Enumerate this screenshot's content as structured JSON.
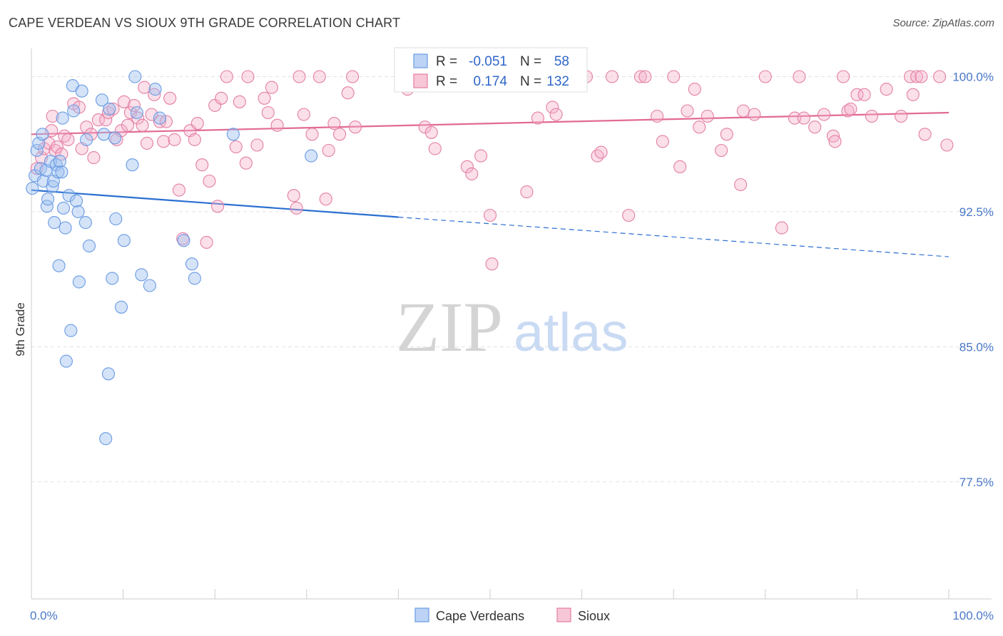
{
  "title": "CAPE VERDEAN VS SIOUX 9TH GRADE CORRELATION CHART",
  "source": "Source: ZipAtlas.com",
  "watermark": {
    "zip": "ZIP",
    "atlas": "atlas"
  },
  "chart_data": {
    "type": "scatter",
    "ylabel": "9th Grade",
    "xlim": [
      0,
      100
    ],
    "ylim": [
      71,
      101.8
    ],
    "y_ticks": [
      77.5,
      85.0,
      92.5,
      100.0
    ],
    "y_tick_labels": [
      "77.5%",
      "85.0%",
      "92.5%",
      "100.0%"
    ],
    "x_tick_labels": [
      "0.0%",
      "100.0%"
    ],
    "legend": {
      "r_label": "R =",
      "n_label": "N =",
      "entries": [
        {
          "name": "Cape Verdeans",
          "r": "-0.051",
          "n": "58",
          "color": "#6a9be3",
          "fill": "#bcd3f5"
        },
        {
          "name": "Sioux",
          "r": "0.174",
          "n": "132",
          "color": "#e37fa3",
          "fill": "#f7c6d7"
        }
      ]
    },
    "series": [
      {
        "name": "Cape Verdeans",
        "color": "#6a9be3",
        "trend": {
          "x0": 0,
          "y0": 93.7,
          "x1": 40,
          "y1": 92.2,
          "x_dash_end": 100,
          "y_dash_end": 90.0
        },
        "points": [
          [
            0.1,
            93.8
          ],
          [
            0.4,
            94.5
          ],
          [
            0.6,
            95.9
          ],
          [
            0.8,
            96.3
          ],
          [
            1.0,
            94.9
          ],
          [
            1.2,
            96.8
          ],
          [
            1.3,
            94.2
          ],
          [
            1.6,
            94.8
          ],
          [
            1.7,
            92.8
          ],
          [
            1.8,
            93.2
          ],
          [
            2.1,
            95.3
          ],
          [
            2.3,
            93.9
          ],
          [
            2.4,
            94.2
          ],
          [
            2.5,
            91.9
          ],
          [
            2.7,
            95.1
          ],
          [
            2.9,
            94.7
          ],
          [
            3.0,
            89.5
          ],
          [
            3.1,
            95.3
          ],
          [
            3.3,
            94.7
          ],
          [
            3.4,
            97.7
          ],
          [
            3.5,
            92.7
          ],
          [
            3.7,
            91.6
          ],
          [
            3.8,
            84.2
          ],
          [
            4.1,
            93.4
          ],
          [
            4.3,
            85.9
          ],
          [
            4.5,
            99.5
          ],
          [
            4.6,
            98.1
          ],
          [
            4.9,
            93.1
          ],
          [
            5.1,
            92.5
          ],
          [
            5.2,
            88.6
          ],
          [
            5.5,
            99.2
          ],
          [
            5.9,
            91.9
          ],
          [
            6.0,
            96.5
          ],
          [
            6.3,
            90.6
          ],
          [
            7.7,
            98.7
          ],
          [
            7.9,
            96.8
          ],
          [
            8.1,
            79.9
          ],
          [
            8.4,
            83.5
          ],
          [
            8.5,
            98.2
          ],
          [
            8.8,
            88.8
          ],
          [
            9.1,
            96.6
          ],
          [
            9.2,
            92.1
          ],
          [
            9.8,
            87.2
          ],
          [
            10.1,
            90.9
          ],
          [
            11.0,
            95.1
          ],
          [
            11.3,
            100.0
          ],
          [
            11.5,
            98.0
          ],
          [
            12.0,
            89.0
          ],
          [
            12.9,
            88.4
          ],
          [
            13.5,
            99.3
          ],
          [
            14.0,
            97.7
          ],
          [
            16.6,
            90.9
          ],
          [
            17.5,
            89.6
          ],
          [
            17.8,
            88.8
          ],
          [
            22.0,
            96.8
          ],
          [
            30.5,
            95.6
          ]
        ]
      },
      {
        "name": "Sioux",
        "color": "#e37fa3",
        "trend": {
          "x0": 0,
          "y0": 96.8,
          "x1": 100,
          "y1": 98.0
        },
        "points": [
          [
            0.6,
            94.9
          ],
          [
            1.1,
            95.5
          ],
          [
            1.4,
            96.0
          ],
          [
            1.9,
            96.3
          ],
          [
            2.2,
            97.0
          ],
          [
            2.3,
            97.8
          ],
          [
            2.6,
            95.9
          ],
          [
            2.8,
            96.1
          ],
          [
            3.3,
            95.7
          ],
          [
            3.6,
            96.7
          ],
          [
            4.0,
            96.5
          ],
          [
            4.6,
            98.5
          ],
          [
            5.2,
            98.3
          ],
          [
            5.5,
            96.0
          ],
          [
            6.0,
            97.2
          ],
          [
            6.5,
            96.8
          ],
          [
            6.8,
            95.5
          ],
          [
            7.3,
            97.6
          ],
          [
            8.1,
            97.6
          ],
          [
            8.4,
            98.0
          ],
          [
            8.9,
            98.2
          ],
          [
            9.3,
            96.5
          ],
          [
            9.8,
            97.0
          ],
          [
            10.1,
            98.6
          ],
          [
            10.5,
            97.3
          ],
          [
            10.8,
            98.0
          ],
          [
            11.2,
            98.4
          ],
          [
            11.6,
            97.7
          ],
          [
            12.1,
            97.3
          ],
          [
            12.3,
            99.4
          ],
          [
            12.6,
            96.3
          ],
          [
            13.1,
            97.9
          ],
          [
            13.4,
            99.0
          ],
          [
            14.0,
            97.5
          ],
          [
            14.4,
            96.4
          ],
          [
            14.7,
            97.5
          ],
          [
            15.1,
            98.8
          ],
          [
            15.6,
            96.5
          ],
          [
            16.1,
            93.7
          ],
          [
            16.5,
            91.0
          ],
          [
            17.3,
            97.0
          ],
          [
            17.8,
            96.5
          ],
          [
            18.1,
            97.4
          ],
          [
            18.6,
            95.1
          ],
          [
            19.1,
            90.8
          ],
          [
            19.4,
            94.2
          ],
          [
            20.0,
            98.4
          ],
          [
            20.3,
            92.8
          ],
          [
            20.7,
            98.8
          ],
          [
            21.3,
            100.0
          ],
          [
            22.3,
            96.1
          ],
          [
            22.7,
            98.6
          ],
          [
            23.4,
            95.2
          ],
          [
            23.6,
            100.0
          ],
          [
            24.6,
            96.2
          ],
          [
            25.4,
            98.8
          ],
          [
            25.8,
            98.0
          ],
          [
            26.2,
            99.4
          ],
          [
            26.8,
            97.3
          ],
          [
            28.6,
            93.4
          ],
          [
            28.9,
            92.7
          ],
          [
            29.2,
            100.0
          ],
          [
            29.7,
            97.9
          ],
          [
            30.6,
            96.8
          ],
          [
            31.4,
            100.0
          ],
          [
            32.1,
            93.2
          ],
          [
            32.4,
            95.9
          ],
          [
            33.0,
            97.4
          ],
          [
            33.6,
            96.8
          ],
          [
            34.5,
            99.1
          ],
          [
            35.0,
            100.0
          ],
          [
            35.3,
            97.2
          ],
          [
            41.0,
            99.3
          ],
          [
            42.9,
            97.2
          ],
          [
            43.6,
            96.9
          ],
          [
            44.0,
            96.0
          ],
          [
            46.6,
            100.0
          ],
          [
            47.5,
            95.0
          ],
          [
            48.0,
            94.6
          ],
          [
            49.0,
            95.6
          ],
          [
            50.0,
            92.3
          ],
          [
            50.2,
            89.6
          ],
          [
            51.5,
            100.0
          ],
          [
            54.0,
            93.6
          ],
          [
            55.2,
            97.7
          ],
          [
            56.4,
            100.0
          ],
          [
            56.8,
            98.3
          ],
          [
            57.2,
            97.9
          ],
          [
            60.5,
            100.0
          ],
          [
            61.7,
            95.6
          ],
          [
            62.1,
            95.8
          ],
          [
            63.3,
            100.0
          ],
          [
            65.1,
            92.3
          ],
          [
            66.4,
            100.0
          ],
          [
            66.9,
            100.0
          ],
          [
            68.2,
            97.8
          ],
          [
            68.8,
            96.4
          ],
          [
            70.0,
            100.0
          ],
          [
            70.7,
            95.0
          ],
          [
            71.5,
            98.1
          ],
          [
            72.3,
            99.3
          ],
          [
            72.8,
            97.2
          ],
          [
            73.7,
            97.8
          ],
          [
            75.2,
            95.9
          ],
          [
            75.8,
            96.8
          ],
          [
            77.3,
            94.0
          ],
          [
            77.6,
            98.1
          ],
          [
            78.8,
            97.9
          ],
          [
            80.0,
            100.0
          ],
          [
            81.8,
            91.6
          ],
          [
            83.2,
            97.7
          ],
          [
            83.7,
            100.0
          ],
          [
            84.2,
            97.7
          ],
          [
            85.4,
            97.2
          ],
          [
            86.4,
            97.9
          ],
          [
            87.4,
            96.7
          ],
          [
            87.6,
            96.4
          ],
          [
            88.5,
            100.0
          ],
          [
            89.0,
            98.1
          ],
          [
            89.3,
            98.2
          ],
          [
            90.0,
            99.0
          ],
          [
            90.8,
            99.0
          ],
          [
            91.6,
            97.8
          ],
          [
            93.2,
            99.3
          ],
          [
            94.8,
            97.8
          ],
          [
            95.8,
            100.0
          ],
          [
            96.1,
            99.0
          ],
          [
            96.5,
            100.0
          ],
          [
            97.0,
            100.0
          ],
          [
            97.4,
            96.8
          ],
          [
            99.8,
            96.2
          ],
          [
            99.0,
            100.0
          ]
        ]
      }
    ]
  }
}
